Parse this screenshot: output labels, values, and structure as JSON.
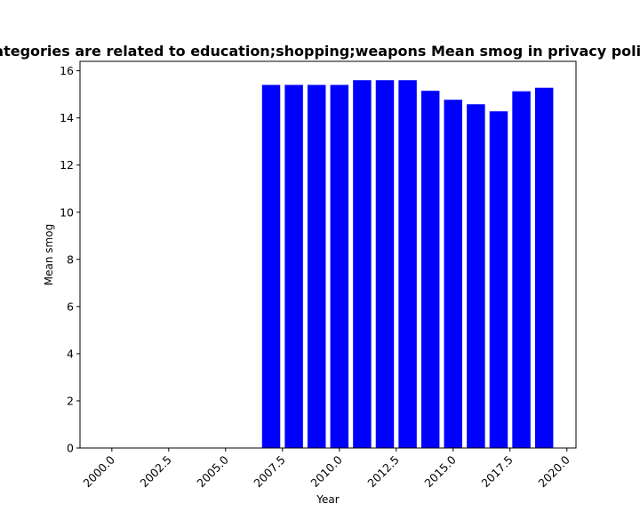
{
  "chart_data": {
    "type": "bar",
    "title": "Categories are related to education;shopping;weapons Mean smog in privacy policies",
    "xlabel": "Year",
    "ylabel": "Mean smog",
    "x": [
      2007,
      2008,
      2009,
      2010,
      2011,
      2012,
      2013,
      2014,
      2015,
      2016,
      2017,
      2018,
      2019
    ],
    "values": [
      15.4,
      15.4,
      15.4,
      15.4,
      15.6,
      15.6,
      15.6,
      15.15,
      14.77,
      14.58,
      14.28,
      15.13,
      15.28
    ],
    "xlim": [
      1998.6,
      2020.4
    ],
    "ylim": [
      0,
      16.4
    ],
    "xticks": [
      "2000.0",
      "2002.5",
      "2005.0",
      "2007.5",
      "2010.0",
      "2012.5",
      "2015.0",
      "2017.5",
      "2020.0"
    ],
    "yticks": [
      "0",
      "2",
      "4",
      "6",
      "8",
      "10",
      "12",
      "14",
      "16"
    ],
    "bar_color": "#0000ff",
    "grid": false,
    "legend": "none"
  }
}
